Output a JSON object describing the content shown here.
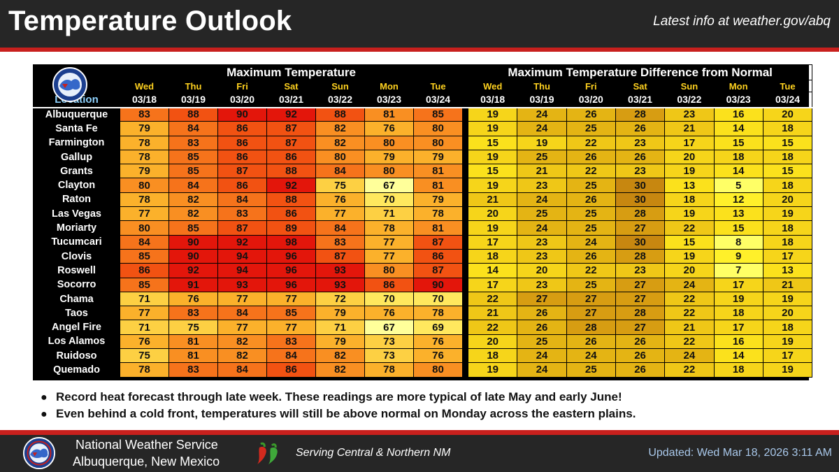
{
  "header": {
    "title": "Temperature Outlook",
    "tagline": "Latest info at weather.gov/abq"
  },
  "table": {
    "max_title": "Maximum Temperature",
    "diff_title": "Maximum Temperature Difference from Normal",
    "location_label": "Location",
    "days": [
      "Wed",
      "Thu",
      "Fri",
      "Sat",
      "Sun",
      "Mon",
      "Tue"
    ],
    "dates": [
      "03/18",
      "03/19",
      "03/20",
      "03/21",
      "03/22",
      "03/23",
      "03/24"
    ],
    "rows": [
      {
        "location": "Albuquerque",
        "max": [
          83,
          88,
          90,
          92,
          88,
          81,
          85
        ],
        "diff": [
          19,
          24,
          26,
          28,
          23,
          16,
          20
        ]
      },
      {
        "location": "Santa Fe",
        "max": [
          79,
          84,
          86,
          87,
          82,
          76,
          80
        ],
        "diff": [
          19,
          24,
          25,
          26,
          21,
          14,
          18
        ]
      },
      {
        "location": "Farmington",
        "max": [
          78,
          83,
          86,
          87,
          82,
          80,
          80
        ],
        "diff": [
          15,
          19,
          22,
          23,
          17,
          15,
          15
        ]
      },
      {
        "location": "Gallup",
        "max": [
          78,
          85,
          86,
          86,
          80,
          79,
          79
        ],
        "diff": [
          19,
          25,
          26,
          26,
          20,
          18,
          18
        ]
      },
      {
        "location": "Grants",
        "max": [
          79,
          85,
          87,
          88,
          84,
          80,
          81
        ],
        "diff": [
          15,
          21,
          22,
          23,
          19,
          14,
          15
        ]
      },
      {
        "location": "Clayton",
        "max": [
          80,
          84,
          86,
          92,
          75,
          67,
          81
        ],
        "diff": [
          19,
          23,
          25,
          30,
          13,
          5,
          18
        ]
      },
      {
        "location": "Raton",
        "max": [
          78,
          82,
          84,
          88,
          76,
          70,
          79
        ],
        "diff": [
          21,
          24,
          26,
          30,
          18,
          12,
          20
        ]
      },
      {
        "location": "Las Vegas",
        "max": [
          77,
          82,
          83,
          86,
          77,
          71,
          78
        ],
        "diff": [
          20,
          25,
          25,
          28,
          19,
          13,
          19
        ]
      },
      {
        "location": "Moriarty",
        "max": [
          80,
          85,
          87,
          89,
          84,
          78,
          81
        ],
        "diff": [
          19,
          24,
          25,
          27,
          22,
          15,
          18
        ]
      },
      {
        "location": "Tucumcari",
        "max": [
          84,
          90,
          92,
          98,
          83,
          77,
          87
        ],
        "diff": [
          17,
          23,
          24,
          30,
          15,
          8,
          18
        ]
      },
      {
        "location": "Clovis",
        "max": [
          85,
          90,
          94,
          96,
          87,
          77,
          86
        ],
        "diff": [
          18,
          23,
          26,
          28,
          19,
          9,
          17
        ]
      },
      {
        "location": "Roswell",
        "max": [
          86,
          92,
          94,
          96,
          93,
          80,
          87
        ],
        "diff": [
          14,
          20,
          22,
          23,
          20,
          7,
          13
        ]
      },
      {
        "location": "Socorro",
        "max": [
          85,
          91,
          93,
          96,
          93,
          86,
          90
        ],
        "diff": [
          17,
          23,
          25,
          27,
          24,
          17,
          21
        ]
      },
      {
        "location": "Chama",
        "max": [
          71,
          76,
          77,
          77,
          72,
          70,
          70
        ],
        "diff": [
          22,
          27,
          27,
          27,
          22,
          19,
          19
        ]
      },
      {
        "location": "Taos",
        "max": [
          77,
          83,
          84,
          85,
          79,
          76,
          78
        ],
        "diff": [
          21,
          26,
          27,
          28,
          22,
          18,
          20
        ]
      },
      {
        "location": "Angel Fire",
        "max": [
          71,
          75,
          77,
          77,
          71,
          67,
          69
        ],
        "diff": [
          22,
          26,
          28,
          27,
          21,
          17,
          18
        ]
      },
      {
        "location": "Los Alamos",
        "max": [
          76,
          81,
          82,
          83,
          79,
          73,
          76
        ],
        "diff": [
          20,
          25,
          26,
          26,
          22,
          16,
          19
        ]
      },
      {
        "location": "Ruidoso",
        "max": [
          75,
          81,
          82,
          84,
          82,
          73,
          76
        ],
        "diff": [
          18,
          24,
          24,
          26,
          24,
          14,
          17
        ]
      },
      {
        "location": "Quemado",
        "max": [
          78,
          83,
          84,
          86,
          82,
          78,
          80
        ],
        "diff": [
          19,
          24,
          25,
          26,
          22,
          18,
          19
        ]
      }
    ]
  },
  "bullets": [
    "Record heat forecast through late week. These readings are more typical of late May and early June!",
    "Even behind a cold front, temperatures will still be above normal on Monday across the eastern plains."
  ],
  "footer": {
    "org_line1": "National Weather Service",
    "org_line2": "Albuquerque, New Mexico",
    "serving": "Serving Central & Northern NM",
    "updated": "Updated: Wed Mar 18, 2026 3:11 AM"
  },
  "colors": {
    "header_bg": "#262626",
    "accent_red": "#c8201d",
    "location_header": "#8fd3ff",
    "day_header": "#ffd21f"
  },
  "icons": {
    "nws_logo": "nws-logo-icon",
    "chili": "chili-pepper-icon"
  }
}
